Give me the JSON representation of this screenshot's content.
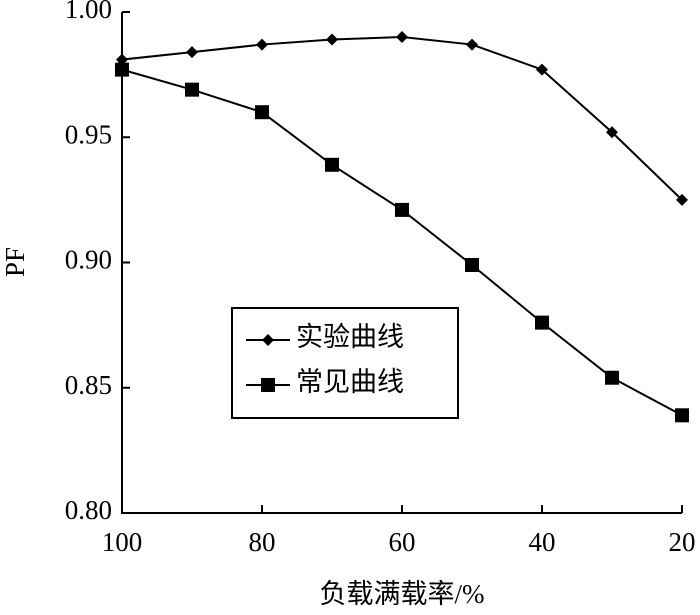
{
  "chart_data": {
    "type": "line",
    "x_label": "负载满载率/%",
    "y_label": "PF",
    "x": [
      100,
      90,
      80,
      70,
      60,
      50,
      40,
      30,
      20
    ],
    "series": [
      {
        "name": "实验曲线",
        "color": "#000000",
        "marker": "diamond",
        "values": [
          0.981,
          0.984,
          0.987,
          0.989,
          0.99,
          0.987,
          0.977,
          0.952,
          0.925
        ]
      },
      {
        "name": "常见曲线",
        "color": "#000000",
        "marker": "square",
        "values": [
          0.977,
          0.969,
          0.96,
          0.939,
          0.921,
          0.899,
          0.876,
          0.854,
          0.839
        ]
      }
    ],
    "xlim": [
      100,
      20
    ],
    "xticks": [
      100,
      80,
      60,
      40,
      20
    ],
    "ylim": [
      0.8,
      1.0
    ],
    "yticks": [
      {
        "value": 0.8,
        "label": "0.80"
      },
      0.85,
      {
        "value": 0.9,
        "label": "0.90"
      },
      0.95,
      {
        "value": 1.0,
        "label": "1.00"
      }
    ],
    "grid": false,
    "legend": "center"
  }
}
